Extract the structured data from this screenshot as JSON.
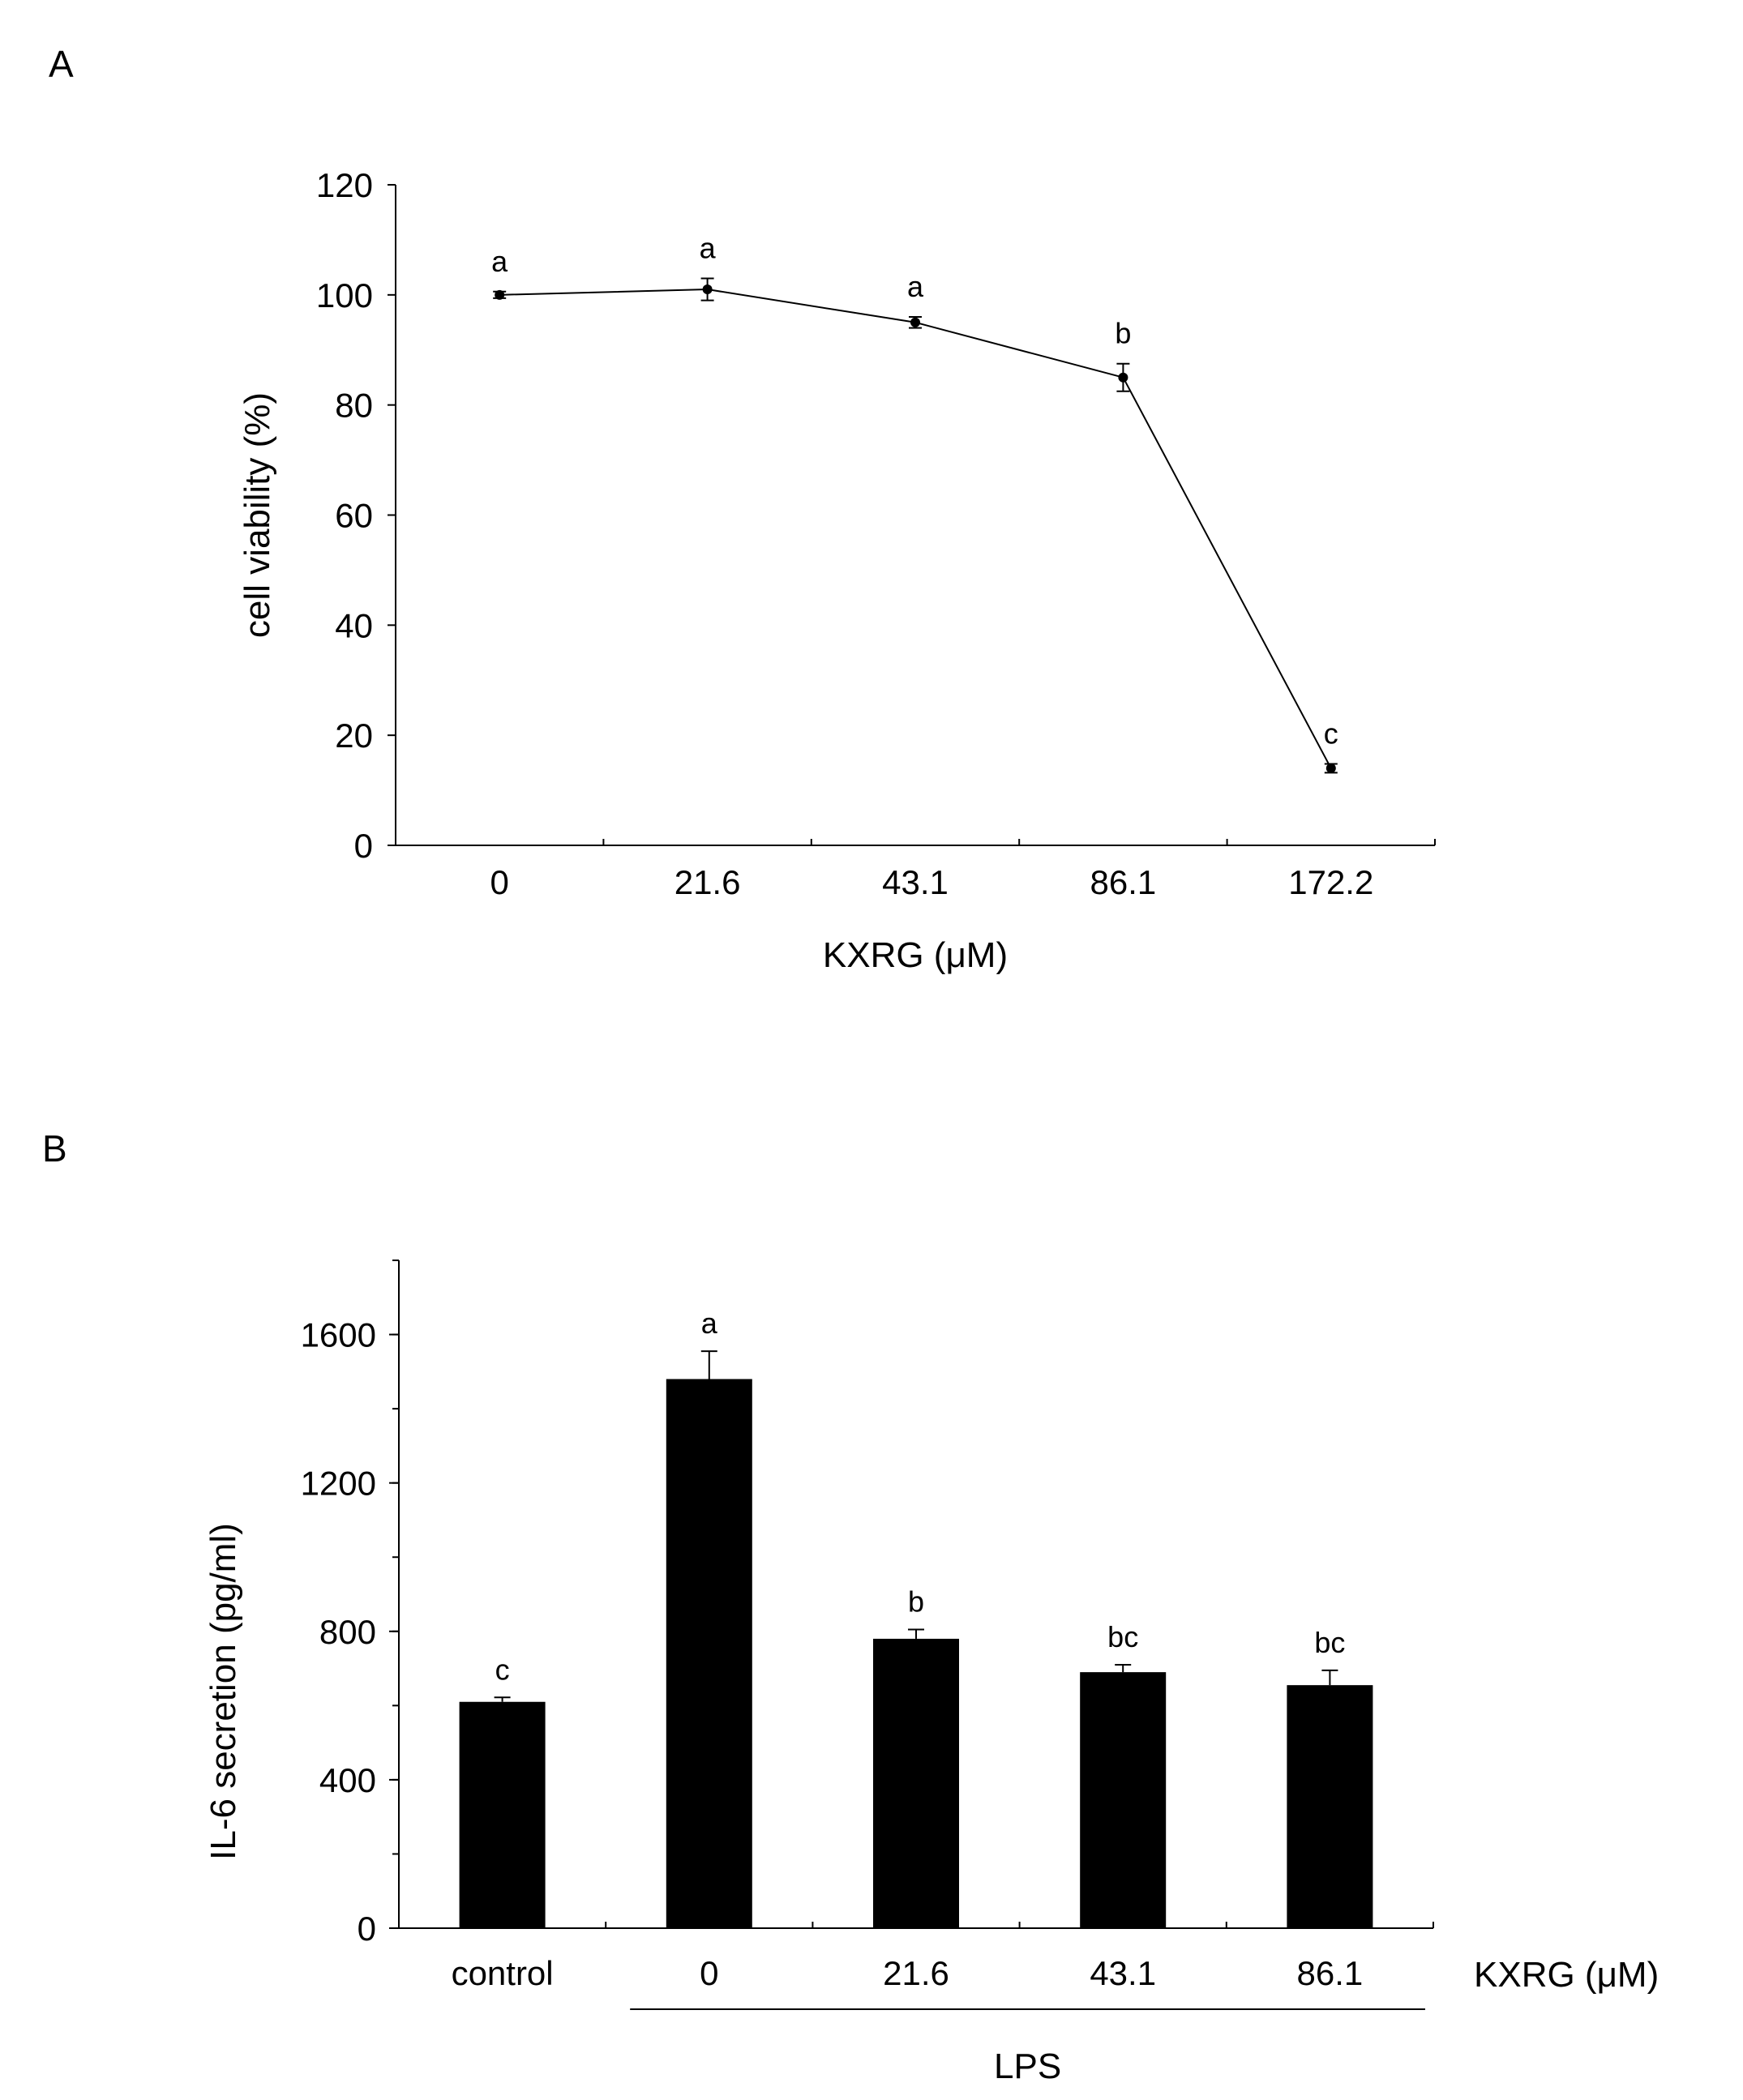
{
  "panels": {
    "A": {
      "label": "A"
    },
    "B": {
      "label": "B"
    }
  },
  "chart_data": [
    {
      "panel": "A",
      "type": "line",
      "title": "",
      "xlabel": "KXRG (μM)",
      "ylabel": "cell viability (%)",
      "ylim": [
        0,
        120
      ],
      "yticks": [
        0,
        20,
        40,
        60,
        80,
        100,
        120
      ],
      "categories": [
        "0",
        "21.6",
        "43.1",
        "86.1",
        "172.2"
      ],
      "series": [
        {
          "name": "cell viability",
          "values": [
            100,
            101,
            95,
            85,
            14
          ],
          "errors": [
            0.6,
            2,
            1,
            2.5,
            0.8
          ],
          "letters": [
            "a",
            "a",
            "a",
            "b",
            "c"
          ]
        }
      ],
      "color": "#000000"
    },
    {
      "panel": "B",
      "type": "bar",
      "title": "",
      "xlabel": "KXRG (μM)",
      "ylabel": "IL-6 secretion (pg/ml)",
      "group_label": "LPS",
      "ylim": [
        0,
        1800
      ],
      "yticks": [
        0,
        400,
        800,
        1200,
        1600
      ],
      "categories": [
        "control",
        "0",
        "21.6",
        "43.1",
        "86.1"
      ],
      "series": [
        {
          "name": "IL-6 secretion",
          "values": [
            610,
            1480,
            780,
            690,
            655
          ],
          "errors": [
            12,
            75,
            25,
            20,
            40
          ],
          "letters": [
            "c",
            "a",
            "b",
            "bc",
            "bc"
          ]
        }
      ],
      "bar_color": "#000000"
    }
  ]
}
